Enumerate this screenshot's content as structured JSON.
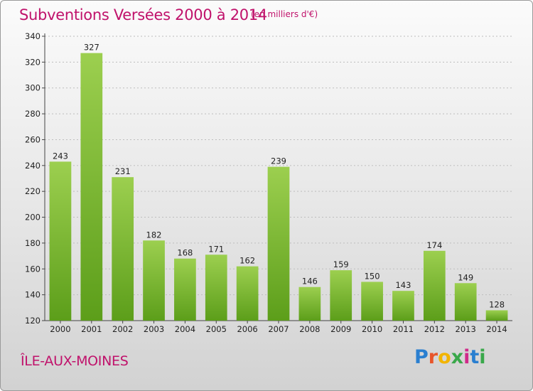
{
  "header": {
    "title": "Subventions Versées 2000 à 2014",
    "unit": "(en milliers d'€)"
  },
  "footer": {
    "place": "ÎLE-AUX-MOINES",
    "logo": "Proxiti",
    "logo_colors": [
      "#2a7fd0",
      "#e8552a",
      "#f2b400",
      "#39a84a",
      "#d02a8a",
      "#2a7fd0",
      "#39a84a"
    ]
  },
  "colors": {
    "title": "#c0126b",
    "bar_light": "#9ccf4f",
    "bar_dark": "#5c9e1a",
    "grid": "#bdbdbd"
  },
  "chart_data": {
    "type": "bar",
    "title": "Subventions Versées 2000 à 2014",
    "xlabel": "",
    "ylabel": "",
    "categories": [
      "2000",
      "2001",
      "2002",
      "2003",
      "2004",
      "2005",
      "2006",
      "2007",
      "2008",
      "2009",
      "2010",
      "2011",
      "2012",
      "2013",
      "2014"
    ],
    "values": [
      243,
      327,
      231,
      182,
      168,
      171,
      162,
      239,
      146,
      159,
      150,
      143,
      174,
      149,
      128
    ],
    "ylim": [
      120,
      340
    ],
    "yticks": [
      120,
      140,
      160,
      180,
      200,
      220,
      240,
      260,
      280,
      300,
      320,
      340
    ],
    "grid": true,
    "data_labels": true
  }
}
